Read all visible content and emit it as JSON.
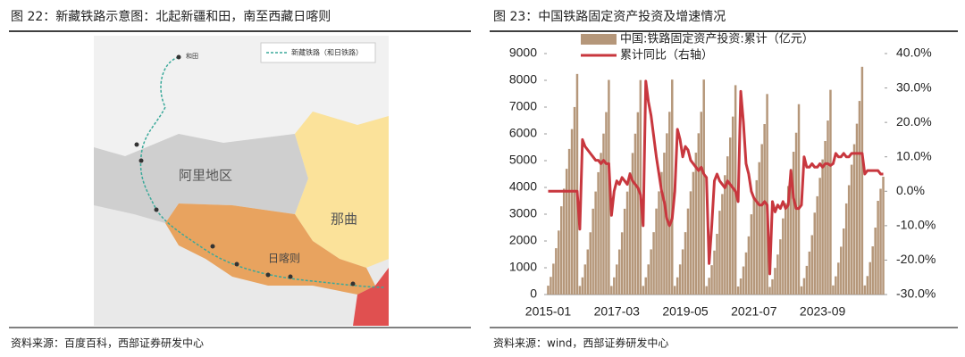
{
  "left_figure": {
    "title": "图 22：新藏铁路示意图：北起新疆和田，南至西藏日喀则",
    "map_legend": "新藏铁路（和日铁路）",
    "map_labels": [
      "和田",
      "阿里地区",
      "那曲",
      "日喀则"
    ],
    "source": "资料来源：百度百科，西部证券研发中心"
  },
  "right_figure": {
    "title": "图 23：中国铁路固定资产投资及增速情况",
    "source": "资料来源：wind，西部证券研发中心"
  },
  "chart_data": {
    "type": "combo",
    "categories": [
      "2015-01",
      null,
      null,
      null,
      null,
      null,
      null,
      null,
      null,
      null,
      null,
      null,
      null,
      null,
      null,
      null,
      null,
      null,
      null,
      null,
      null,
      null,
      null,
      null,
      null,
      null,
      "2017-03",
      null,
      null,
      null,
      null,
      null,
      null,
      null,
      null,
      null,
      null,
      null,
      null,
      null,
      null,
      null,
      null,
      null,
      null,
      null,
      null,
      null,
      null,
      null,
      null,
      null,
      "2019-05",
      null,
      null,
      null,
      null,
      null,
      null,
      null,
      null,
      null,
      null,
      null,
      null,
      null,
      null,
      null,
      null,
      null,
      null,
      null,
      null,
      null,
      null,
      null,
      null,
      null,
      "2021-07",
      null,
      null,
      null,
      null,
      null,
      null,
      null,
      null,
      null,
      null,
      null,
      null,
      null,
      null,
      null,
      null,
      null,
      null,
      null,
      null,
      null,
      null,
      null,
      null,
      null,
      "2023-09",
      null,
      null,
      null,
      null,
      null,
      null,
      null,
      null,
      null,
      null,
      null,
      null,
      null,
      null,
      null,
      null,
      null,
      null,
      null,
      null,
      null,
      null,
      null
    ],
    "series": [
      {
        "name": "中国:铁路固定资产投资:累计（亿元）",
        "type": "bar",
        "color": "#b5977a",
        "values": [
          330,
          659,
          1153,
          1730,
          2389,
          3295,
          3954,
          4696,
          5437,
          6179,
          7002,
          8238,
          321,
          641,
          1122,
          1683,
          2324,
          3206,
          3847,
          4569,
          5290,
          6011,
          6813,
          8015,
          320,
          641,
          1121,
          1682,
          2323,
          3204,
          3845,
          4566,
          5287,
          6008,
          6809,
          8010,
          321,
          642,
          1124,
          1686,
          2328,
          3211,
          3853,
          4576,
          5298,
          6021,
          6824,
          8028,
          321,
          642,
          1124,
          1686,
          2328,
          3212,
          3854,
          4577,
          5299,
          6022,
          6825,
          8029,
          313,
          626,
          1095,
          1642,
          2268,
          3128,
          3753,
          4457,
          5161,
          5864,
          6646,
          7819,
          300,
          599,
          1048,
          1573,
          2172,
          2996,
          3595,
          4269,
          4943,
          5617,
          6366,
          7489,
          284,
          569,
          995,
          1493,
          2062,
          2844,
          3412,
          4052,
          4692,
          5332,
          6043,
          7109,
          306,
          612,
          1070,
          1605,
          2217,
          3058,
          3670,
          4358,
          5046,
          5734,
          6498,
          7645,
          340,
          680,
          1191,
          1786,
          2467,
          3402,
          4083,
          4848,
          5614,
          6380,
          7230,
          8506,
          340,
          690,
          1210,
          1800,
          2500,
          3500,
          3950,
          4400
        ]
      },
      {
        "name": "累计同比（右轴）",
        "type": "line",
        "axis": "y2",
        "color": "#c8373e",
        "values": [
          0,
          0,
          0,
          0,
          0,
          0,
          0,
          0,
          0,
          0,
          0,
          0,
          -11,
          15,
          13,
          12,
          11,
          10,
          9,
          9,
          8,
          9,
          8,
          8,
          -7,
          0,
          3,
          2,
          4,
          3,
          2,
          5,
          3,
          2,
          1,
          -1,
          -10,
          32,
          26,
          22,
          16,
          10,
          5,
          0,
          -3,
          -8,
          -10,
          -8,
          0,
          18,
          15,
          10,
          13,
          12,
          9,
          8,
          7,
          6,
          7,
          5,
          4,
          -21,
          -10,
          3,
          5,
          3,
          2,
          1,
          3,
          2,
          1,
          0,
          -3,
          29,
          20,
          8,
          5,
          0,
          -2,
          -3,
          -4,
          -4,
          -3,
          -4,
          -24,
          -3,
          -6,
          -4,
          -5,
          -3,
          -5,
          -4,
          6,
          -2,
          -5,
          -5,
          -4,
          10,
          7,
          7,
          8,
          7,
          7,
          8,
          7,
          8,
          8,
          7.5,
          8,
          11,
          10,
          10,
          11,
          10,
          10,
          11,
          11,
          11,
          11,
          11,
          5,
          6,
          6,
          6,
          6,
          6,
          5,
          5
        ]
      }
    ],
    "ylim": [
      0,
      9000
    ],
    "yticks": [
      0,
      1000,
      2000,
      3000,
      4000,
      5000,
      6000,
      7000,
      8000,
      9000
    ],
    "y2lim": [
      -30,
      40
    ],
    "y2ticks": [
      {
        "value": -30,
        "label": "-30.0%"
      },
      {
        "value": -20,
        "label": "-20.0%"
      },
      {
        "value": -10,
        "label": "-10.0%"
      },
      {
        "value": 0,
        "label": "0.0%"
      },
      {
        "value": 10,
        "label": "10.0%"
      },
      {
        "value": 20,
        "label": "20.0%"
      },
      {
        "value": 30,
        "label": "30.0%"
      },
      {
        "value": 40,
        "label": "40.0%"
      }
    ]
  }
}
